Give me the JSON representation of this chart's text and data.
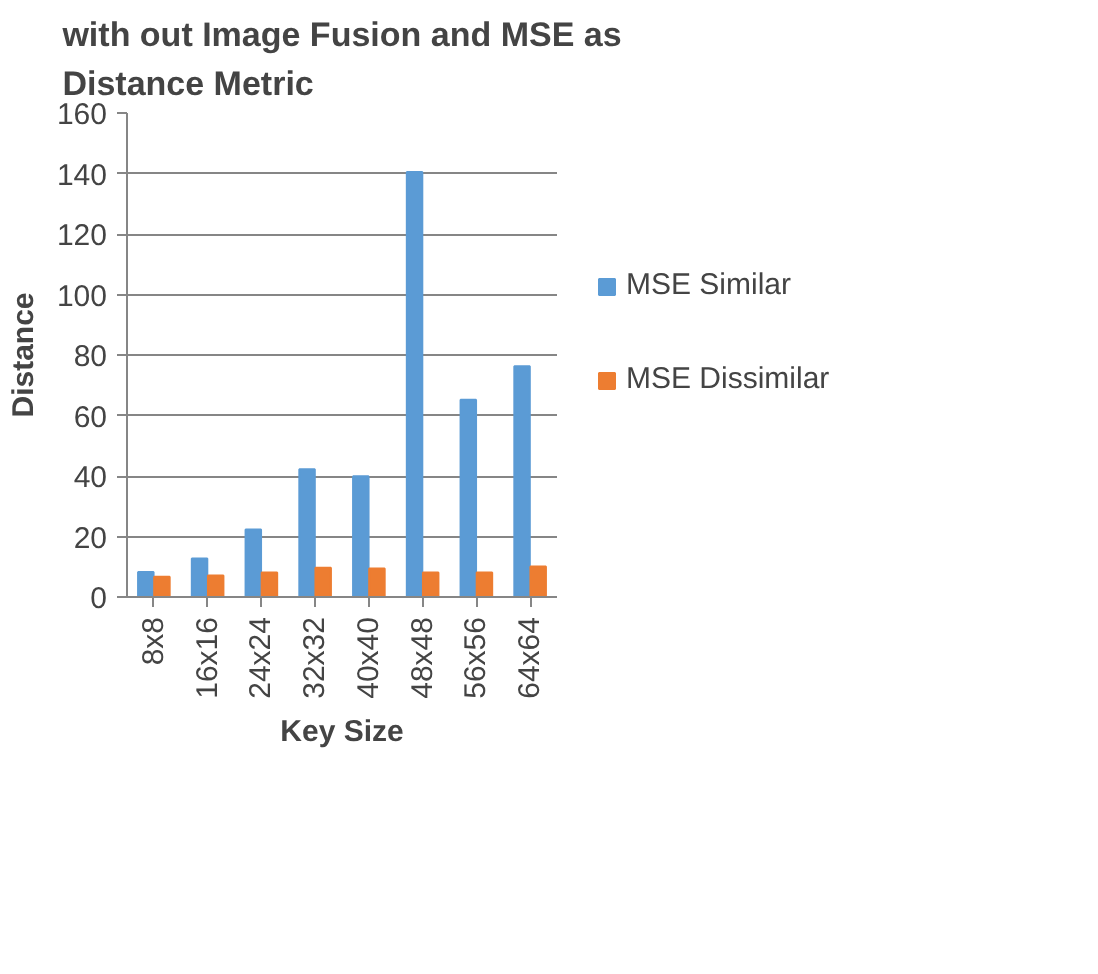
{
  "chart_data": {
    "type": "bar",
    "title": "with out Image Fusion and MSE as Distance Metric",
    "xlabel": "Key Size",
    "ylabel": "Distance",
    "categories": [
      "8x8",
      "16x16",
      "24x24",
      "32x32",
      "40x40",
      "48x48",
      "56x56",
      "64x64"
    ],
    "series": [
      {
        "name": "MSE Similar",
        "color": "#5b9bd5",
        "values": [
          8.3,
          12.7,
          22.3,
          42.2,
          39.9,
          140.5,
          65.2,
          76.3
        ]
      },
      {
        "name": "MSE Dissimilar",
        "color": "#ed7d31",
        "values": [
          6.7,
          7.1,
          8.1,
          9.7,
          9.4,
          8.1,
          8.1,
          10.1
        ]
      }
    ],
    "ylim": [
      0,
      160
    ],
    "yticks": [
      0,
      20,
      40,
      60,
      80,
      100,
      120,
      140,
      160
    ],
    "grid": "y",
    "legend": "right"
  }
}
